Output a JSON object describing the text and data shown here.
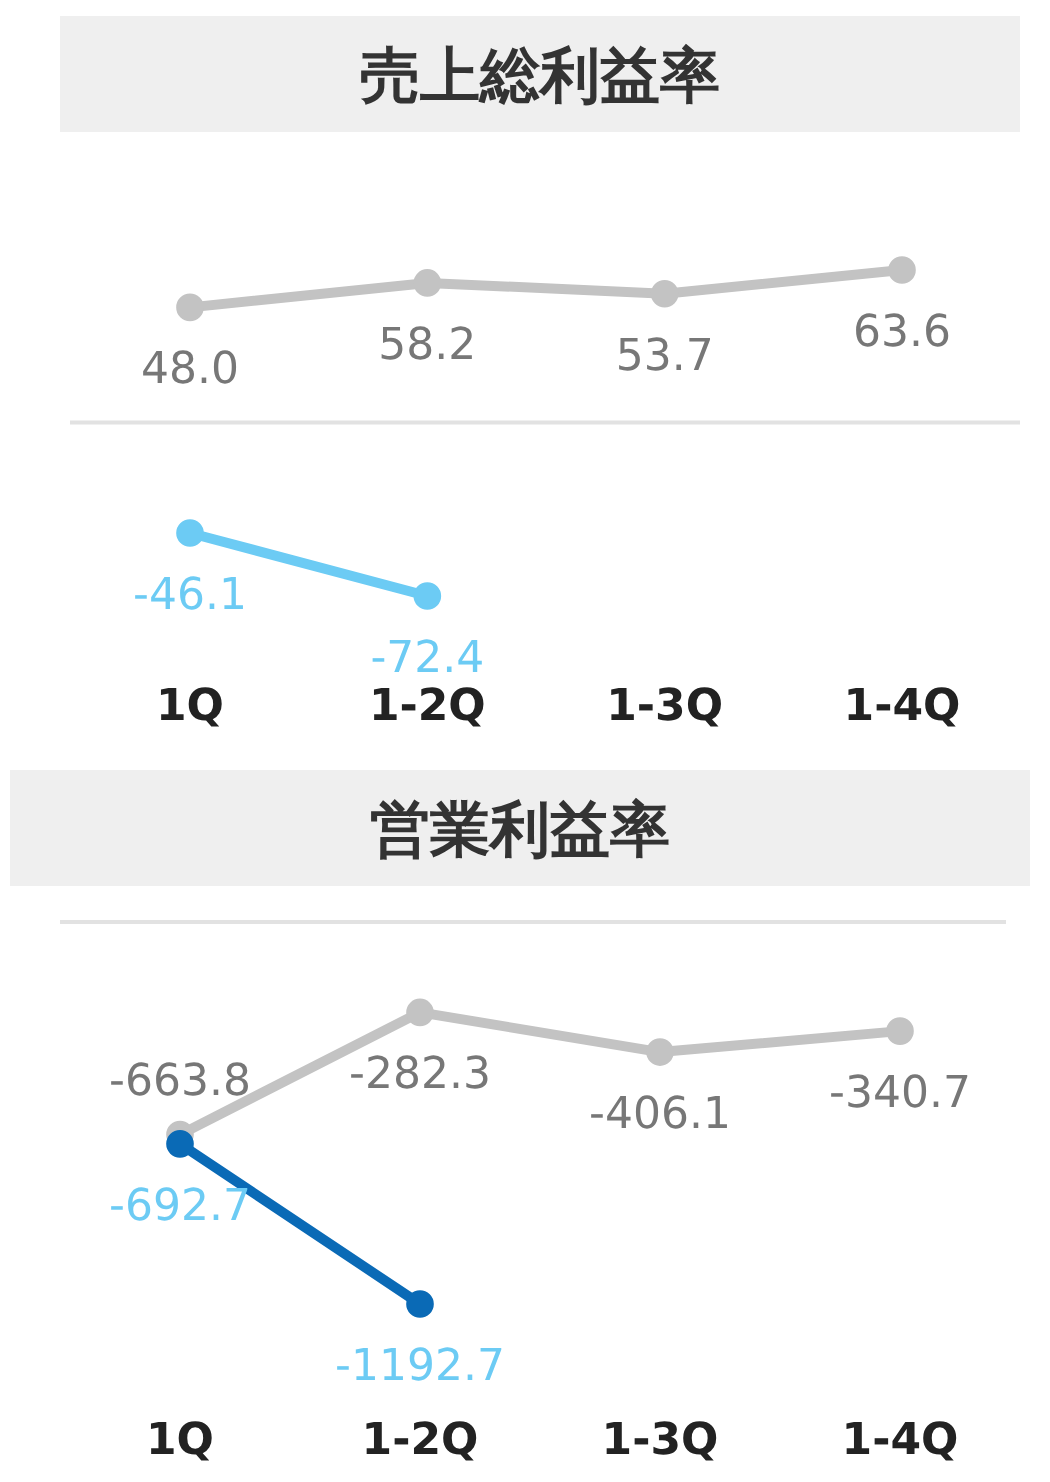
{
  "chart_data": [
    {
      "type": "line",
      "title": "売上総利益率",
      "categories": [
        "1Q",
        "1-2Q",
        "1-3Q",
        "1-4Q"
      ],
      "series": [
        {
          "color": "#c3c3c3",
          "values": [
            48.0,
            58.2,
            53.7,
            63.6
          ],
          "value_labels": [
            "48.0",
            "58.2",
            "53.7",
            "63.6"
          ]
        },
        {
          "color": "#6ccbf4",
          "values": [
            -46.1,
            -72.4,
            null,
            null
          ],
          "value_labels": [
            "-46.1",
            "-72.4",
            null,
            null
          ]
        }
      ],
      "marker": "circle",
      "ref_lines": [
        {
          "axis": "y",
          "value": 0,
          "color": "#e2e2e2"
        }
      ]
    },
    {
      "type": "line",
      "title": "営業利益率",
      "categories": [
        "1Q",
        "1-2Q",
        "1-3Q",
        "1-4Q"
      ],
      "series": [
        {
          "color": "#c3c3c3",
          "values": [
            -663.8,
            -282.3,
            -406.1,
            -340.7
          ],
          "value_labels": [
            "-663.8",
            "-282.3",
            "-406.1",
            "-340.7"
          ]
        },
        {
          "color": "#0a6ab6",
          "values": [
            -692.7,
            -1192.7,
            null,
            null
          ],
          "value_labels": [
            "-692.7",
            "-1192.7",
            null,
            null
          ]
        }
      ],
      "marker": "circle",
      "ref_lines": [
        {
          "axis": "y",
          "value": 0,
          "color": "#e2e2e2"
        }
      ]
    }
  ]
}
